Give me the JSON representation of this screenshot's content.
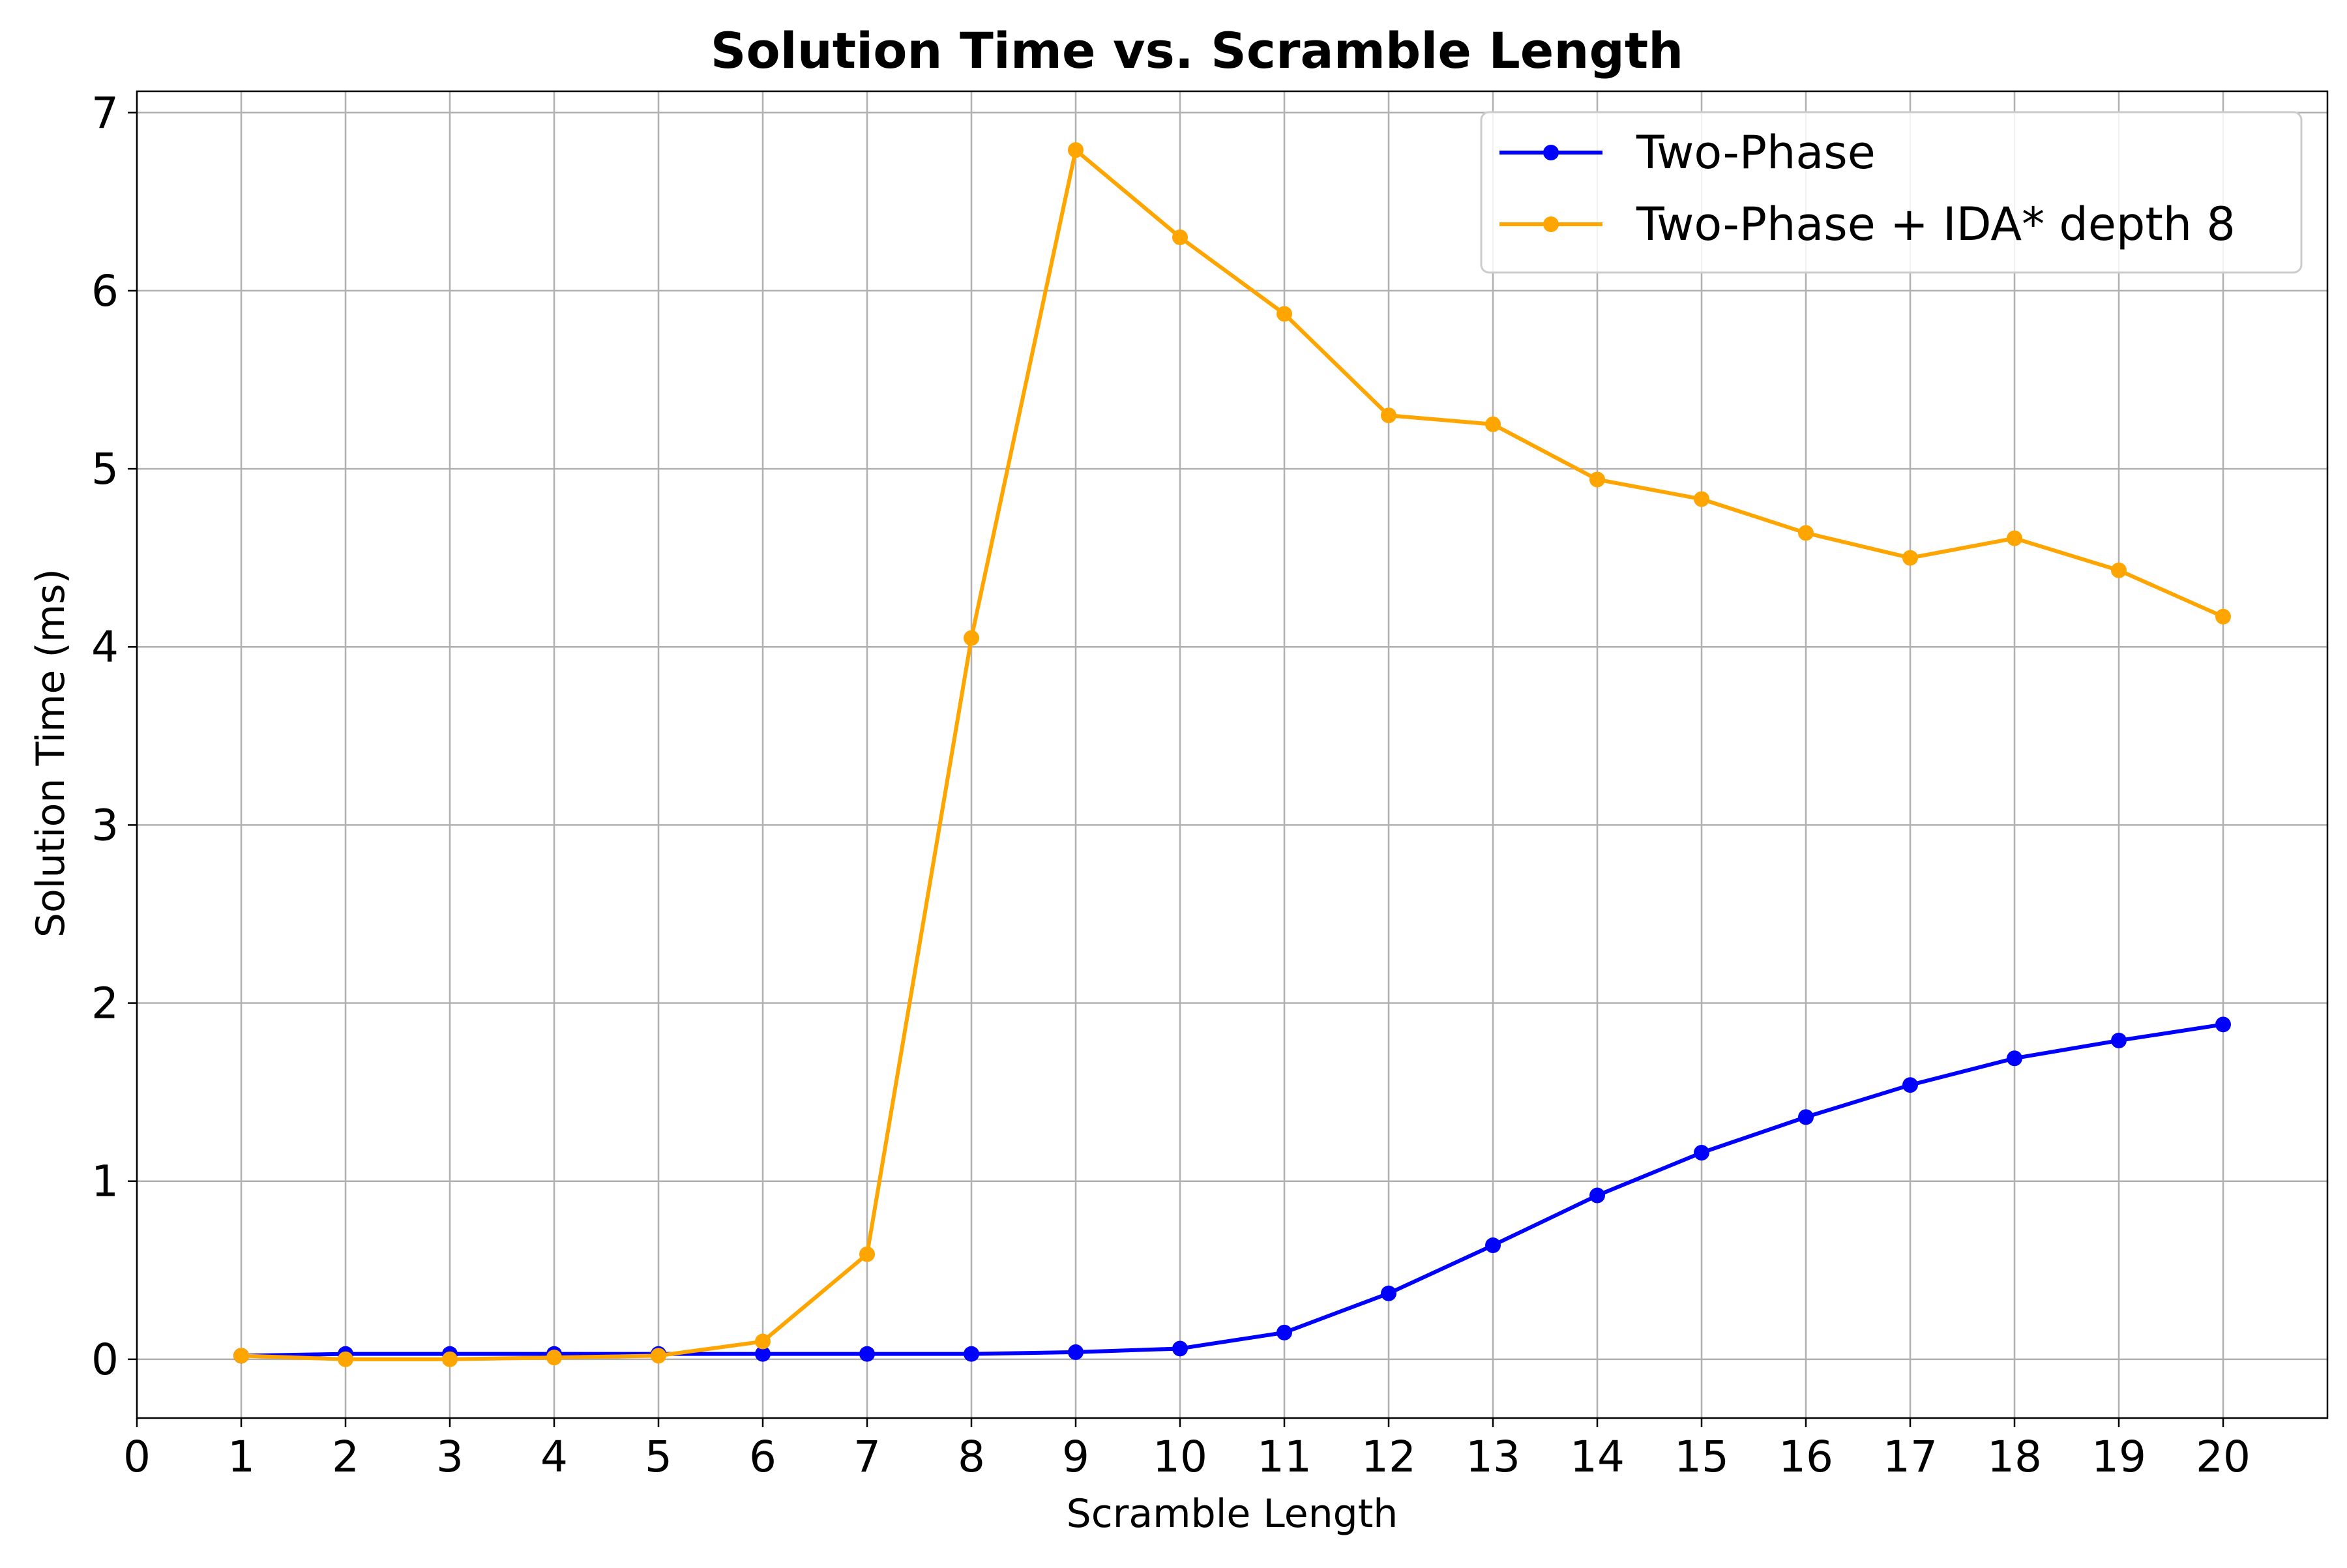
{
  "chart_data": {
    "type": "line",
    "title": "Solution Time vs. Scramble Length",
    "xlabel": "Scramble Length",
    "ylabel": "Solution Time (ms)",
    "xlim": [
      0,
      21
    ],
    "ylim": [
      -0.33,
      7.12
    ],
    "xticks": [
      0,
      1,
      2,
      3,
      4,
      5,
      6,
      7,
      8,
      9,
      10,
      11,
      12,
      13,
      14,
      15,
      16,
      17,
      18,
      19,
      20
    ],
    "yticks": [
      0,
      1,
      2,
      3,
      4,
      5,
      6,
      7
    ],
    "grid": true,
    "legend_position": "top-right",
    "x": [
      1,
      2,
      3,
      4,
      5,
      6,
      7,
      8,
      9,
      10,
      11,
      12,
      13,
      14,
      15,
      16,
      17,
      18,
      19,
      20
    ],
    "series": [
      {
        "name": "Two-Phase",
        "color": "#0000ff",
        "values": [
          0.02,
          0.03,
          0.03,
          0.03,
          0.03,
          0.03,
          0.03,
          0.03,
          0.04,
          0.06,
          0.15,
          0.37,
          0.64,
          0.92,
          1.16,
          1.36,
          1.54,
          1.69,
          1.79,
          1.88
        ]
      },
      {
        "name": "Two-Phase + IDA* depth 8",
        "color": "#ffa500",
        "values": [
          0.02,
          0.0,
          0.0,
          0.01,
          0.02,
          0.1,
          0.59,
          4.05,
          6.79,
          6.3,
          5.87,
          5.3,
          5.25,
          4.94,
          4.83,
          4.64,
          4.5,
          4.61,
          4.43,
          4.17
        ]
      }
    ]
  }
}
